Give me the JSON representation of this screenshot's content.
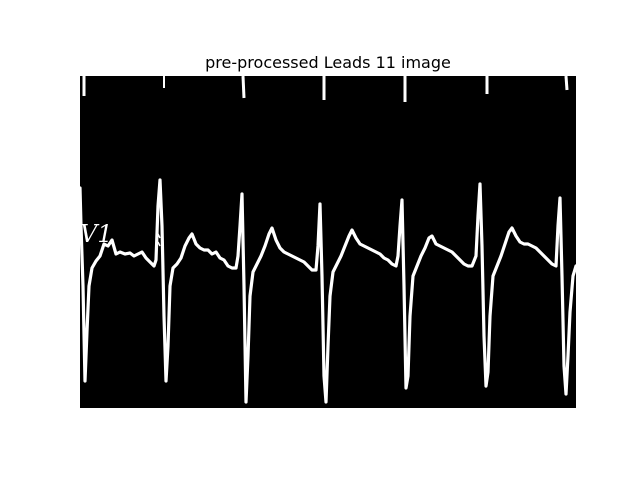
{
  "figure": {
    "title": "pre-processed Leads 11 image",
    "background_color": "#ffffff",
    "panel_color": "#000000",
    "trace_color": "#ffffff"
  },
  "ecg_panel": {
    "lead_label": "V1",
    "image_type": "binarized ECG lead strip",
    "beats_visible": 6
  }
}
